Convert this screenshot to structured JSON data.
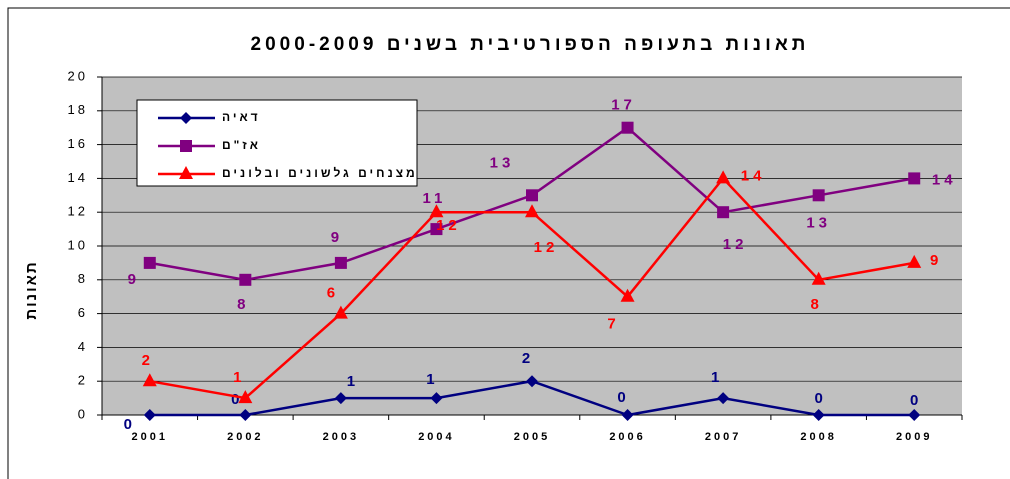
{
  "chart_data": {
    "type": "line",
    "title": "תאונות בתעופה הספורטיבית בשנים 2000-2009",
    "y_label": "תאונות",
    "categories": [
      "2001",
      "2002",
      "2003",
      "2004",
      "2005",
      "2006",
      "2007",
      "2008",
      "2009"
    ],
    "series": [
      {
        "name": "דאיה",
        "color": "#000080",
        "marker": "diamond",
        "values": [
          0,
          0,
          1,
          1,
          2,
          0,
          1,
          0,
          0
        ]
      },
      {
        "name": "אז\"ם",
        "color": "#800080",
        "marker": "square",
        "values": [
          9,
          8,
          9,
          11,
          13,
          17,
          12,
          13,
          14
        ]
      },
      {
        "name": "מצנחים גלשונים ובלונים",
        "color": "#ff0000",
        "marker": "triangle",
        "values": [
          2,
          1,
          6,
          12,
          12,
          7,
          14,
          8,
          9
        ]
      }
    ],
    "ylim": [
      0,
      20
    ],
    "yticks": [
      0,
      2,
      4,
      6,
      8,
      10,
      12,
      14,
      16,
      18,
      20
    ],
    "grid": true
  }
}
